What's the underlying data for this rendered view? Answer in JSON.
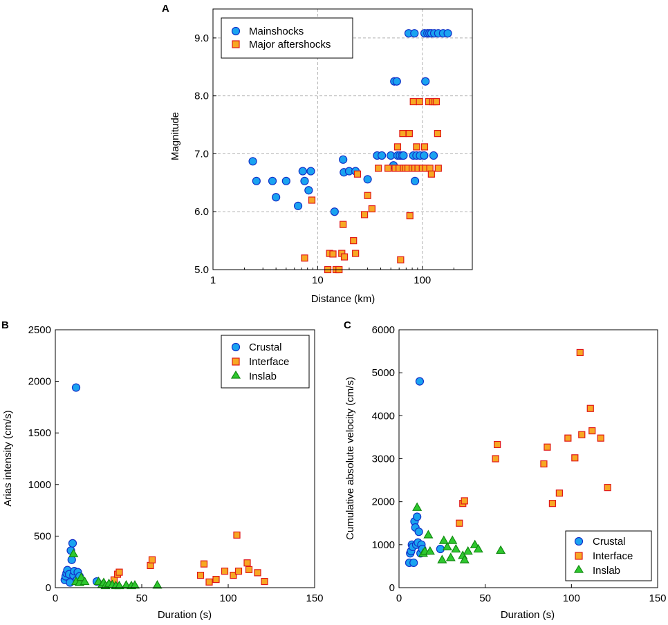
{
  "colors": {
    "crustal_fill": "#1aa3f0",
    "crustal_stroke": "#1230c8",
    "interface_fill": "#f7a823",
    "interface_stroke": "#e01818",
    "inslab_fill": "#2ec82e",
    "inslab_stroke": "#128a12",
    "grid": "#b0b0b0"
  },
  "chart_data": [
    {
      "panel": "A",
      "type": "scatter",
      "xscale": "log",
      "xlabel": "Distance (km)",
      "ylabel": "Magnitude",
      "xlim": [
        1,
        300
      ],
      "ylim": [
        5.0,
        9.5
      ],
      "xticks": [
        1,
        10,
        100
      ],
      "xtick_labels": [
        "1",
        "10",
        "100"
      ],
      "yticks": [
        5,
        6,
        7,
        8,
        9
      ],
      "ytick_labels": [
        "5.0",
        "6.0",
        "7.0",
        "8.0",
        "9.0"
      ],
      "grid": true,
      "legend": [
        "Mainshocks",
        "Major aftershocks"
      ],
      "legend_position": "top-left",
      "series": [
        {
          "name": "Mainshocks",
          "marker": "circle",
          "points": [
            [
              2.4,
              6.87
            ],
            [
              2.6,
              6.53
            ],
            [
              3.7,
              6.53
            ],
            [
              4.0,
              6.25
            ],
            [
              5.0,
              6.53
            ],
            [
              6.5,
              6.1
            ],
            [
              7.2,
              6.7
            ],
            [
              7.5,
              6.53
            ],
            [
              8.2,
              6.37
            ],
            [
              8.6,
              6.7
            ],
            [
              14.5,
              6.0
            ],
            [
              17.5,
              6.9
            ],
            [
              17.8,
              6.68
            ],
            [
              20,
              6.7
            ],
            [
              23,
              6.7
            ],
            [
              30,
              6.56
            ],
            [
              37,
              6.97
            ],
            [
              41,
              6.97
            ],
            [
              50,
              6.97
            ],
            [
              53,
              6.8
            ],
            [
              54,
              8.25
            ],
            [
              57,
              8.25
            ],
            [
              58,
              6.97
            ],
            [
              61,
              6.97
            ],
            [
              64,
              6.97
            ],
            [
              66,
              6.97
            ],
            [
              74,
              9.08
            ],
            [
              82,
              6.97
            ],
            [
              84,
              9.08
            ],
            [
              85,
              6.53
            ],
            [
              88,
              6.97
            ],
            [
              95,
              6.97
            ],
            [
              104,
              6.97
            ],
            [
              105,
              9.08
            ],
            [
              107,
              8.25
            ],
            [
              112,
              9.08
            ],
            [
              117,
              9.08
            ],
            [
              122,
              9.08
            ],
            [
              128,
              6.97
            ],
            [
              130,
              9.08
            ],
            [
              142,
              9.08
            ],
            [
              158,
              9.08
            ],
            [
              175,
              9.08
            ]
          ]
        },
        {
          "name": "Major aftershocks",
          "marker": "square",
          "points": [
            [
              7.5,
              5.2
            ],
            [
              8.8,
              6.2
            ],
            [
              12.5,
              5.0
            ],
            [
              13,
              5.28
            ],
            [
              14,
              5.27
            ],
            [
              15,
              5.0
            ],
            [
              16,
              5.0
            ],
            [
              17,
              5.28
            ],
            [
              17.5,
              5.78
            ],
            [
              18,
              5.22
            ],
            [
              22,
              5.5
            ],
            [
              23,
              5.28
            ],
            [
              24,
              6.65
            ],
            [
              28,
              5.95
            ],
            [
              30,
              6.28
            ],
            [
              33,
              6.05
            ],
            [
              38,
              6.75
            ],
            [
              47,
              6.75
            ],
            [
              55,
              6.75
            ],
            [
              58,
              7.12
            ],
            [
              60,
              6.75
            ],
            [
              62,
              5.17
            ],
            [
              65,
              7.35
            ],
            [
              66,
              6.75
            ],
            [
              69,
              6.75
            ],
            [
              73,
              6.75
            ],
            [
              75,
              7.35
            ],
            [
              76,
              5.93
            ],
            [
              80,
              6.75
            ],
            [
              82,
              7.9
            ],
            [
              85,
              6.75
            ],
            [
              88,
              7.12
            ],
            [
              91,
              6.75
            ],
            [
              94,
              7.9
            ],
            [
              100,
              6.75
            ],
            [
              105,
              7.12
            ],
            [
              108,
              6.75
            ],
            [
              115,
              7.9
            ],
            [
              118,
              6.75
            ],
            [
              122,
              6.65
            ],
            [
              126,
              7.9
            ],
            [
              132,
              7.9
            ],
            [
              136,
              7.9
            ],
            [
              140,
              7.35
            ],
            [
              142,
              6.75
            ]
          ]
        }
      ]
    },
    {
      "panel": "B",
      "type": "scatter",
      "xlabel": "Duration (s)",
      "ylabel": "Arias intensity (cm/s)",
      "xlim": [
        0,
        150
      ],
      "ylim": [
        0,
        2500
      ],
      "xticks": [
        0,
        50,
        100,
        150
      ],
      "xtick_labels": [
        "0",
        "50",
        "100",
        "150"
      ],
      "yticks": [
        0,
        500,
        1000,
        1500,
        2000,
        2500
      ],
      "ytick_labels": [
        "0",
        "500",
        "1000",
        "1500",
        "2000",
        "2500"
      ],
      "grid": false,
      "legend": [
        "Crustal",
        "Interface",
        "Inslab"
      ],
      "legend_position": "top-right",
      "series": [
        {
          "name": "Crustal",
          "marker": "circle",
          "points": [
            [
              5.5,
              75
            ],
            [
              6,
              110
            ],
            [
              6.5,
              140
            ],
            [
              7,
              170
            ],
            [
              8,
              130
            ],
            [
              8.5,
              50
            ],
            [
              9,
              360
            ],
            [
              9.5,
              270
            ],
            [
              10,
              430
            ],
            [
              10.5,
              120
            ],
            [
              11,
              160
            ],
            [
              12,
              1940
            ],
            [
              12.5,
              75
            ],
            [
              13,
              150
            ],
            [
              14,
              110
            ],
            [
              24,
              60
            ]
          ]
        },
        {
          "name": "Interface",
          "marker": "square",
          "points": [
            [
              34,
              75
            ],
            [
              36,
              130
            ],
            [
              37,
              150
            ],
            [
              55,
              215
            ],
            [
              56,
              270
            ],
            [
              84,
              120
            ],
            [
              86,
              230
            ],
            [
              89,
              55
            ],
            [
              93,
              80
            ],
            [
              98,
              160
            ],
            [
              103,
              120
            ],
            [
              105,
              510
            ],
            [
              106,
              160
            ],
            [
              111,
              240
            ],
            [
              112,
              175
            ],
            [
              117,
              145
            ],
            [
              121,
              60
            ]
          ]
        },
        {
          "name": "Inslab",
          "marker": "triangle",
          "points": [
            [
              10.5,
              330
            ],
            [
              12,
              60
            ],
            [
              14,
              50
            ],
            [
              15,
              100
            ],
            [
              17,
              60
            ],
            [
              25,
              60
            ],
            [
              27,
              30
            ],
            [
              28,
              50
            ],
            [
              29,
              20
            ],
            [
              31,
              40
            ],
            [
              33,
              30
            ],
            [
              35,
              20
            ],
            [
              37,
              20
            ],
            [
              41,
              25
            ],
            [
              44,
              20
            ],
            [
              46,
              25
            ],
            [
              59,
              25
            ]
          ]
        }
      ]
    },
    {
      "panel": "C",
      "type": "scatter",
      "xlabel": "Duration (s)",
      "ylabel": "Cumulative absolute velocity (cm/s)",
      "xlim": [
        0,
        150
      ],
      "ylim": [
        0,
        6000
      ],
      "xticks": [
        0,
        50,
        100,
        150
      ],
      "xtick_labels": [
        "0",
        "50",
        "100",
        "150"
      ],
      "yticks": [
        0,
        1000,
        2000,
        3000,
        4000,
        5000,
        6000
      ],
      "ytick_labels": [
        "0",
        "1000",
        "2000",
        "3000",
        "4000",
        "5000",
        "6000"
      ],
      "grid": false,
      "legend": [
        "Crustal",
        "Interface",
        "Inslab"
      ],
      "legend_position": "bottom-right",
      "series": [
        {
          "name": "Crustal",
          "marker": "circle",
          "points": [
            [
              6,
              580
            ],
            [
              6.5,
              800
            ],
            [
              7,
              850
            ],
            [
              7.5,
              1000
            ],
            [
              8,
              950
            ],
            [
              8.5,
              580
            ],
            [
              9,
              1540
            ],
            [
              9.5,
              1400
            ],
            [
              10,
              1000
            ],
            [
              10.5,
              1650
            ],
            [
              11,
              1050
            ],
            [
              11.5,
              1300
            ],
            [
              12,
              4800
            ],
            [
              12.5,
              800
            ],
            [
              13,
              1000
            ],
            [
              13.5,
              900
            ],
            [
              24,
              900
            ]
          ]
        },
        {
          "name": "Interface",
          "marker": "square",
          "points": [
            [
              35,
              1500
            ],
            [
              37,
              1960
            ],
            [
              38,
              2020
            ],
            [
              56,
              3000
            ],
            [
              57,
              3330
            ],
            [
              84,
              2880
            ],
            [
              86,
              3270
            ],
            [
              89,
              1960
            ],
            [
              93,
              2200
            ],
            [
              98,
              3480
            ],
            [
              102,
              3020
            ],
            [
              105,
              5470
            ],
            [
              106,
              3560
            ],
            [
              111,
              4170
            ],
            [
              112,
              3650
            ],
            [
              117,
              3480
            ],
            [
              121,
              2330
            ]
          ]
        },
        {
          "name": "Inslab",
          "marker": "triangle",
          "points": [
            [
              10.5,
              1870
            ],
            [
              14,
              800
            ],
            [
              15,
              850
            ],
            [
              17,
              1230
            ],
            [
              18,
              850
            ],
            [
              25,
              650
            ],
            [
              26,
              1100
            ],
            [
              28,
              950
            ],
            [
              30,
              700
            ],
            [
              31,
              1100
            ],
            [
              33,
              900
            ],
            [
              37,
              750
            ],
            [
              38,
              650
            ],
            [
              40,
              850
            ],
            [
              44,
              1000
            ],
            [
              46,
              900
            ],
            [
              59,
              870
            ]
          ]
        }
      ]
    }
  ]
}
